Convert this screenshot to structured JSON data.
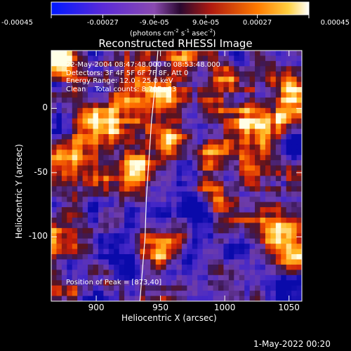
{
  "colorbar": {
    "tick_labels": [
      "-0.00045",
      "-0.00027",
      "-9.0e-05",
      "9.0e-05",
      "0.00027",
      "0.00045"
    ],
    "unit_main": "(photons cm",
    "unit_sup1": "-2",
    "unit_mid1": " s",
    "unit_sup2": "-1",
    "unit_mid2": " asec",
    "unit_sup3": "-2",
    "unit_end": ")"
  },
  "title": "Reconstructed RHESSI Image",
  "info": {
    "time_range": "22-May-2004 08:47:48.000 to 08:53:48.000",
    "detectors": "Detectors: 3F 4F 5F 6F 7F 8F, Att 0",
    "energy": "Energy Range: 12.0 - 25.0 keV",
    "clean": "Clean    Total counts: 8.70E+03"
  },
  "peak_label": "Position of Peak = [873,40]",
  "footer": "1-May-2022 00:20",
  "chart_data": {
    "type": "heatmap",
    "title": "Reconstructed RHESSI Image",
    "xlabel": "Heliocentric X (arcsec)",
    "ylabel": "Heliocentric Y (arcsec)",
    "xlim": [
      865,
      1060
    ],
    "ylim": [
      -150,
      45
    ],
    "x_ticks": [
      900,
      950,
      1000,
      1050
    ],
    "y_ticks": [
      0,
      -50,
      -100
    ],
    "colorbar_range": [
      -0.00045,
      0.00045
    ],
    "colorbar_ticks": [
      -0.00045,
      -0.00027,
      -9e-05,
      9e-05,
      0.00027,
      0.00045
    ],
    "colors": {
      "neg_low": "#0000ff",
      "neg_high": "#7a4ab8",
      "zero": "#2a0a40",
      "pos_mid": "#cc2a00",
      "pos_high": "#ff9a00",
      "max": "#ffffff"
    },
    "peak": [
      873,
      40
    ],
    "limb": [
      [
        948,
        45
      ],
      [
        946,
        20
      ],
      [
        943,
        -10
      ],
      [
        941,
        -40
      ],
      [
        939,
        -70
      ],
      [
        938,
        -100
      ],
      [
        936,
        -125
      ],
      [
        934,
        -150
      ]
    ]
  }
}
